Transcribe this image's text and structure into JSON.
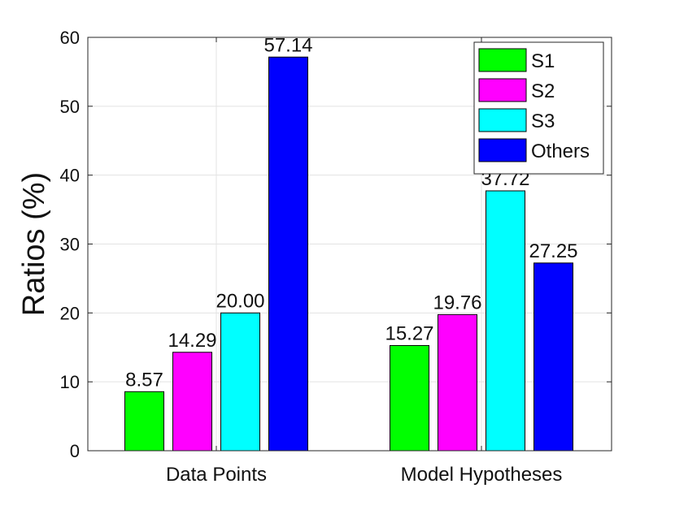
{
  "chart_data": {
    "type": "bar",
    "title": "",
    "xlabel": "",
    "ylabel": "Ratios (%)",
    "ylim": [
      0,
      60
    ],
    "yticks": [
      0,
      10,
      20,
      30,
      40,
      50,
      60
    ],
    "grid": true,
    "legend_position": "top-right",
    "categories": [
      "Data Points",
      "Model Hypotheses"
    ],
    "series": [
      {
        "name": "S1",
        "color": "#00ff00",
        "values": [
          8.57,
          15.27
        ],
        "labels": [
          "8.57",
          "15.27"
        ]
      },
      {
        "name": "S2",
        "color": "#ff00ff",
        "values": [
          14.29,
          19.76
        ],
        "labels": [
          "14.29",
          "19.76"
        ]
      },
      {
        "name": "S3",
        "color": "#00ffff",
        "values": [
          20.0,
          37.72
        ],
        "labels": [
          "20.00",
          "37.72"
        ]
      },
      {
        "name": "Others",
        "color": "#0000ff",
        "values": [
          57.14,
          27.25
        ],
        "labels": [
          "57.14",
          "27.25"
        ]
      }
    ]
  }
}
